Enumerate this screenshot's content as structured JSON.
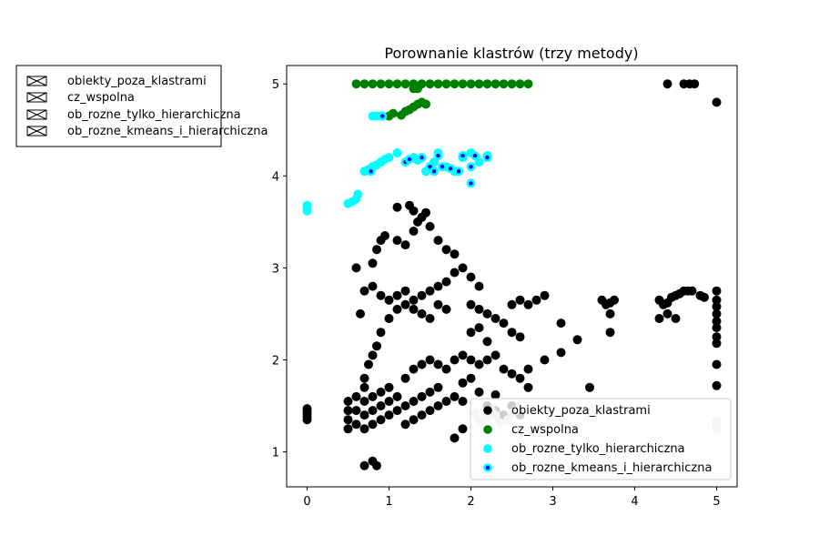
{
  "chart_data": {
    "type": "scatter",
    "title": "Porownanie klastrów (trzy metody)",
    "xlabel": "",
    "ylabel": "",
    "xlim": [
      -0.25,
      5.25
    ],
    "ylim": [
      0.62,
      5.2
    ],
    "xticks": [
      0,
      1,
      2,
      3,
      4,
      5
    ],
    "yticks": [
      1,
      2,
      3,
      4,
      5
    ],
    "grid": false,
    "legend_placement": "lower-right",
    "outer_legend_placement": "upper-left, outside axes",
    "series": [
      {
        "name": "obiekty_poza_klastrami",
        "color": "#000000",
        "marker": "filled-circle",
        "points": [
          [
            0.0,
            1.47
          ],
          [
            0.0,
            1.44
          ],
          [
            0.0,
            1.41
          ],
          [
            0.0,
            1.38
          ],
          [
            0.0,
            1.35
          ],
          [
            0.5,
            1.25
          ],
          [
            0.5,
            1.35
          ],
          [
            0.5,
            1.45
          ],
          [
            0.5,
            1.55
          ],
          [
            0.6,
            1.3
          ],
          [
            0.6,
            1.45
          ],
          [
            0.6,
            1.6
          ],
          [
            0.7,
            1.25
          ],
          [
            0.7,
            1.4
          ],
          [
            0.7,
            1.55
          ],
          [
            0.7,
            1.7
          ],
          [
            0.8,
            1.3
          ],
          [
            0.8,
            1.45
          ],
          [
            0.8,
            1.6
          ],
          [
            0.9,
            1.35
          ],
          [
            0.9,
            1.5
          ],
          [
            0.9,
            1.65
          ],
          [
            1.0,
            1.4
          ],
          [
            1.0,
            1.55
          ],
          [
            1.0,
            1.7
          ],
          [
            1.1,
            1.45
          ],
          [
            1.1,
            1.6
          ],
          [
            1.2,
            1.5
          ],
          [
            1.2,
            1.3
          ],
          [
            1.3,
            1.55
          ],
          [
            1.3,
            1.35
          ],
          [
            1.4,
            1.6
          ],
          [
            1.4,
            1.4
          ],
          [
            1.5,
            1.65
          ],
          [
            1.5,
            1.45
          ],
          [
            1.6,
            1.7
          ],
          [
            1.6,
            1.5
          ],
          [
            1.7,
            1.55
          ],
          [
            1.8,
            1.6
          ],
          [
            1.9,
            1.75
          ],
          [
            2.0,
            1.8
          ],
          [
            2.1,
            1.65
          ],
          [
            2.2,
            1.5
          ],
          [
            2.3,
            1.45
          ],
          [
            2.4,
            1.4
          ],
          [
            2.5,
            1.5
          ],
          [
            2.6,
            1.4
          ],
          [
            1.2,
            1.8
          ],
          [
            1.3,
            1.9
          ],
          [
            1.4,
            1.95
          ],
          [
            1.5,
            2.0
          ],
          [
            1.6,
            1.95
          ],
          [
            1.7,
            1.9
          ],
          [
            1.8,
            2.0
          ],
          [
            1.9,
            2.05
          ],
          [
            2.0,
            2.0
          ],
          [
            2.1,
            1.95
          ],
          [
            2.2,
            2.0
          ],
          [
            2.3,
            2.05
          ],
          [
            2.4,
            1.9
          ],
          [
            2.5,
            1.85
          ],
          [
            2.6,
            1.8
          ],
          [
            2.7,
            1.7
          ],
          [
            0.7,
            1.8
          ],
          [
            0.75,
            1.95
          ],
          [
            0.8,
            2.05
          ],
          [
            0.85,
            2.15
          ],
          [
            0.9,
            2.3
          ],
          [
            1.0,
            2.45
          ],
          [
            1.1,
            2.55
          ],
          [
            1.2,
            2.6
          ],
          [
            1.3,
            2.65
          ],
          [
            1.4,
            2.7
          ],
          [
            1.5,
            2.75
          ],
          [
            1.6,
            2.8
          ],
          [
            1.7,
            2.85
          ],
          [
            1.8,
            2.95
          ],
          [
            1.9,
            3.0
          ],
          [
            2.0,
            2.9
          ],
          [
            2.1,
            2.8
          ],
          [
            0.7,
            2.75
          ],
          [
            0.8,
            2.8
          ],
          [
            0.9,
            2.7
          ],
          [
            1.0,
            2.65
          ],
          [
            1.1,
            2.7
          ],
          [
            1.2,
            2.75
          ],
          [
            1.3,
            2.55
          ],
          [
            1.4,
            2.5
          ],
          [
            1.5,
            2.45
          ],
          [
            1.6,
            2.6
          ],
          [
            1.7,
            2.55
          ],
          [
            0.8,
            3.05
          ],
          [
            0.85,
            3.2
          ],
          [
            0.9,
            3.3
          ],
          [
            0.95,
            3.35
          ],
          [
            1.1,
            3.3
          ],
          [
            1.2,
            3.25
          ],
          [
            1.3,
            3.4
          ],
          [
            1.35,
            3.5
          ],
          [
            1.4,
            3.55
          ],
          [
            1.45,
            3.6
          ],
          [
            1.5,
            3.45
          ],
          [
            1.6,
            3.3
          ],
          [
            1.7,
            3.2
          ],
          [
            1.8,
            3.15
          ],
          [
            1.1,
            3.66
          ],
          [
            1.25,
            3.68
          ],
          [
            1.3,
            3.62
          ],
          [
            2.0,
            2.6
          ],
          [
            2.1,
            2.55
          ],
          [
            2.2,
            2.5
          ],
          [
            2.3,
            2.45
          ],
          [
            2.4,
            2.4
          ],
          [
            2.5,
            2.6
          ],
          [
            2.6,
            2.65
          ],
          [
            2.7,
            2.6
          ],
          [
            2.8,
            2.65
          ],
          [
            2.9,
            2.7
          ],
          [
            3.1,
            2.4
          ],
          [
            2.9,
            2.0
          ],
          [
            3.1,
            2.08
          ],
          [
            3.3,
            2.22
          ],
          [
            3.45,
            1.7
          ],
          [
            1.8,
            1.15
          ],
          [
            1.9,
            1.25
          ],
          [
            0.7,
            0.85
          ],
          [
            0.8,
            0.9
          ],
          [
            0.85,
            0.85
          ],
          [
            0.6,
            3.0
          ],
          [
            0.65,
            2.5
          ],
          [
            1.9,
            1.55
          ],
          [
            2.3,
            1.62
          ],
          [
            2.0,
            2.3
          ],
          [
            2.1,
            2.35
          ],
          [
            2.2,
            2.2
          ],
          [
            2.5,
            2.3
          ],
          [
            2.6,
            2.25
          ],
          [
            2.7,
            1.9
          ],
          [
            3.6,
            2.65
          ],
          [
            3.65,
            2.6
          ],
          [
            3.7,
            2.62
          ],
          [
            3.75,
            2.65
          ],
          [
            3.7,
            2.5
          ],
          [
            3.7,
            2.3
          ],
          [
            4.3,
            2.65
          ],
          [
            4.35,
            2.6
          ],
          [
            4.4,
            2.62
          ],
          [
            4.45,
            2.68
          ],
          [
            4.5,
            2.7
          ],
          [
            4.55,
            2.72
          ],
          [
            4.6,
            2.75
          ],
          [
            4.65,
            2.75
          ],
          [
            4.7,
            2.75
          ],
          [
            4.8,
            2.7
          ],
          [
            4.85,
            2.68
          ],
          [
            4.3,
            2.45
          ],
          [
            4.4,
            2.5
          ],
          [
            4.5,
            2.45
          ],
          [
            5.0,
            2.75
          ],
          [
            5.0,
            2.65
          ],
          [
            5.0,
            2.58
          ],
          [
            5.0,
            2.5
          ],
          [
            5.0,
            2.42
          ],
          [
            5.0,
            2.35
          ],
          [
            5.0,
            2.25
          ],
          [
            5.0,
            2.18
          ],
          [
            5.0,
            1.95
          ],
          [
            5.0,
            1.72
          ],
          [
            4.4,
            5.0
          ],
          [
            4.6,
            5.0
          ],
          [
            4.67,
            5.0
          ],
          [
            4.73,
            5.0
          ],
          [
            5.0,
            4.8
          ]
        ]
      },
      {
        "name": "cz_wspolna",
        "color": "#008000",
        "marker": "filled-circle",
        "points": [
          [
            0.6,
            5.0
          ],
          [
            0.7,
            5.0
          ],
          [
            0.8,
            5.0
          ],
          [
            0.9,
            5.0
          ],
          [
            1.0,
            5.0
          ],
          [
            1.1,
            5.0
          ],
          [
            1.2,
            5.0
          ],
          [
            1.3,
            5.0
          ],
          [
            1.4,
            5.0
          ],
          [
            1.5,
            5.0
          ],
          [
            1.6,
            5.0
          ],
          [
            1.7,
            5.0
          ],
          [
            1.8,
            5.0
          ],
          [
            1.9,
            5.0
          ],
          [
            2.0,
            5.0
          ],
          [
            2.1,
            5.0
          ],
          [
            2.2,
            5.0
          ],
          [
            2.3,
            5.0
          ],
          [
            2.4,
            5.0
          ],
          [
            2.5,
            5.0
          ],
          [
            2.6,
            5.0
          ],
          [
            2.7,
            5.0
          ],
          [
            1.3,
            4.95
          ],
          [
            1.35,
            4.95
          ],
          [
            1.0,
            4.65
          ],
          [
            1.05,
            4.68
          ],
          [
            1.15,
            4.66
          ],
          [
            1.2,
            4.7
          ],
          [
            1.25,
            4.72
          ],
          [
            1.3,
            4.75
          ],
          [
            1.35,
            4.78
          ],
          [
            1.4,
            4.8
          ],
          [
            1.45,
            4.78
          ]
        ]
      },
      {
        "name": "ob_rozne_tylko_hierarchiczna",
        "color": "#00ffff",
        "marker": "filled-circle",
        "points": [
          [
            0.0,
            3.65
          ],
          [
            0.0,
            3.62
          ],
          [
            0.0,
            3.68
          ],
          [
            0.5,
            3.7
          ],
          [
            0.55,
            3.72
          ],
          [
            0.6,
            3.75
          ],
          [
            0.62,
            3.8
          ],
          [
            0.7,
            4.05
          ],
          [
            0.75,
            4.07
          ],
          [
            0.8,
            4.1
          ],
          [
            0.85,
            4.12
          ],
          [
            0.9,
            4.15
          ],
          [
            0.95,
            4.18
          ],
          [
            1.0,
            4.2
          ],
          [
            1.1,
            4.25
          ],
          [
            1.2,
            4.15
          ],
          [
            1.3,
            4.2
          ],
          [
            1.35,
            4.17
          ],
          [
            1.45,
            4.05
          ],
          [
            1.5,
            4.1
          ],
          [
            1.55,
            4.15
          ],
          [
            1.6,
            4.25
          ],
          [
            1.7,
            4.1
          ],
          [
            1.8,
            4.05
          ],
          [
            1.9,
            4.2
          ],
          [
            2.0,
            4.25
          ],
          [
            2.1,
            4.15
          ],
          [
            2.2,
            4.22
          ],
          [
            0.8,
            4.65
          ],
          [
            0.85,
            4.65
          ],
          [
            0.9,
            4.65
          ]
        ]
      },
      {
        "name": "ob_rozne_kmeans_i_hierarchiczna",
        "color": "#00ffff",
        "edgecolor": "#00ffff",
        "innercolor": "#0000ff",
        "marker": "circle-with-center",
        "points": [
          [
            0.78,
            4.05
          ],
          [
            1.2,
            4.15
          ],
          [
            1.25,
            4.18
          ],
          [
            1.4,
            4.2
          ],
          [
            1.5,
            4.1
          ],
          [
            1.55,
            4.05
          ],
          [
            1.65,
            4.1
          ],
          [
            1.75,
            4.08
          ],
          [
            1.85,
            4.05
          ],
          [
            2.0,
            4.1
          ],
          [
            1.6,
            4.22
          ],
          [
            1.9,
            4.22
          ],
          [
            2.05,
            4.22
          ],
          [
            2.2,
            4.2
          ],
          [
            2.0,
            3.92
          ],
          [
            0.92,
            4.65
          ]
        ]
      }
    ],
    "overlay_points_gray": {
      "color": "#cccccc",
      "points": [
        [
          2.05,
          1.42
        ],
        [
          2.1,
          1.35
        ],
        [
          2.15,
          1.3
        ],
        [
          2.2,
          1.38
        ],
        [
          2.25,
          1.45
        ],
        [
          2.3,
          1.4
        ],
        [
          2.35,
          1.32
        ],
        [
          2.45,
          1.35
        ],
        [
          2.5,
          1.42
        ],
        [
          2.55,
          1.45
        ],
        [
          5.0,
          1.28
        ],
        [
          5.0,
          1.33
        ],
        [
          5.0,
          1.24
        ]
      ]
    },
    "legend_inner": [
      {
        "label": "obiekty_poza_klastrami"
      },
      {
        "label": "cz_wspolna"
      },
      {
        "label": "ob_rozne_tylko_hierarchiczna"
      },
      {
        "label": "ob_rozne_kmeans_i_hierarchiczna"
      }
    ],
    "legend_outer": [
      {
        "label": "obiekty_poza_klastrami"
      },
      {
        "label": "cz_wspolna"
      },
      {
        "label": "ob_rozne_tylko_hierarchiczna"
      },
      {
        "label": "ob_rozne_kmeans_i_hierarchiczna"
      }
    ]
  }
}
